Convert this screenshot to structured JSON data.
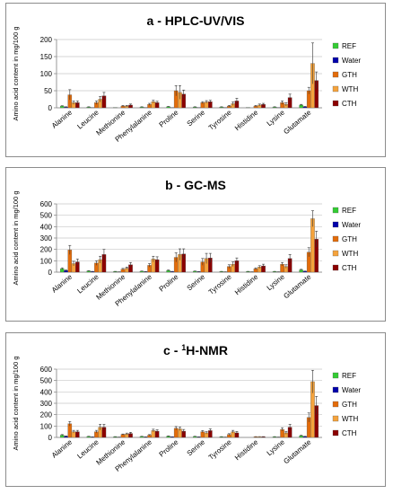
{
  "legend": [
    "REF",
    "Water",
    "GTH",
    "WTH",
    "CTH"
  ],
  "series_colors": [
    "#33cc33",
    "#0000aa",
    "#e36c0a",
    "#f5a33c",
    "#8b0000"
  ],
  "categories": [
    "Alanine",
    "Leucine",
    "Methionine",
    "Phenylalanine",
    "Proline",
    "Serine",
    "Tyrosine",
    "Histidine",
    "Lysine",
    "Glutamate"
  ],
  "chart_data": [
    {
      "type": "bar",
      "title": "a - HPLC-UV/VIS",
      "ylabel": "Amino acid content in mg/100 g",
      "ylim": [
        0,
        200
      ],
      "yticks": [
        "0",
        "50",
        "100",
        "150",
        "200"
      ],
      "categories": [
        "Alanine",
        "Leucine",
        "Methionine",
        "Phenylalanine",
        "Proline",
        "Serine",
        "Tyrosine",
        "Histidine",
        "Lysine",
        "Glutamate"
      ],
      "series": [
        {
          "name": "REF",
          "values": [
            5,
            2,
            1,
            2,
            3,
            2,
            2,
            1,
            2,
            8
          ],
          "errors": [
            1,
            1,
            0,
            1,
            1,
            1,
            1,
            0,
            1,
            2
          ]
        },
        {
          "name": "Water",
          "values": [
            2,
            1,
            0,
            1,
            1,
            1,
            1,
            0,
            1,
            3
          ],
          "errors": [
            1,
            0,
            0,
            0,
            0,
            0,
            0,
            0,
            0,
            1
          ]
        },
        {
          "name": "GTH",
          "values": [
            38,
            15,
            5,
            10,
            50,
            15,
            5,
            5,
            15,
            50
          ],
          "errors": [
            15,
            5,
            2,
            3,
            15,
            3,
            2,
            2,
            5,
            10
          ]
        },
        {
          "name": "WTH",
          "values": [
            15,
            25,
            5,
            18,
            45,
            17,
            12,
            8,
            10,
            130
          ],
          "errors": [
            5,
            8,
            2,
            4,
            20,
            4,
            5,
            3,
            5,
            60
          ]
        },
        {
          "name": "CTH",
          "values": [
            15,
            35,
            8,
            15,
            40,
            18,
            20,
            10,
            30,
            80
          ],
          "errors": [
            5,
            10,
            3,
            4,
            12,
            4,
            8,
            3,
            10,
            25
          ]
        }
      ]
    },
    {
      "type": "bar",
      "title": "b - GC-MS",
      "ylabel": "Amino acid content in mg/100 g",
      "ylim": [
        0,
        600
      ],
      "yticks": [
        "0",
        "100",
        "200",
        "300",
        "400",
        "500",
        "600"
      ],
      "categories": [
        "Alanine",
        "Leucine",
        "Methionine",
        "Phenylalanine",
        "Proline",
        "Serine",
        "Tyrosine",
        "Histidine",
        "Lysine",
        "Glutamate"
      ],
      "series": [
        {
          "name": "REF",
          "values": [
            30,
            10,
            5,
            8,
            15,
            8,
            5,
            5,
            5,
            20
          ],
          "errors": [
            8,
            3,
            2,
            2,
            4,
            2,
            2,
            2,
            2,
            5
          ]
        },
        {
          "name": "Water",
          "values": [
            15,
            5,
            2,
            4,
            5,
            4,
            2,
            2,
            2,
            8
          ],
          "errors": [
            4,
            2,
            1,
            1,
            2,
            1,
            1,
            1,
            1,
            2
          ]
        },
        {
          "name": "GTH",
          "values": [
            195,
            80,
            25,
            60,
            130,
            90,
            50,
            30,
            70,
            175
          ],
          "errors": [
            40,
            20,
            8,
            15,
            40,
            30,
            15,
            8,
            15,
            40
          ]
        },
        {
          "name": "WTH",
          "values": [
            75,
            110,
            35,
            115,
            155,
            120,
            70,
            45,
            50,
            470
          ],
          "errors": [
            20,
            30,
            10,
            25,
            50,
            45,
            20,
            12,
            15,
            70
          ]
        },
        {
          "name": "CTH",
          "values": [
            90,
            155,
            65,
            110,
            160,
            125,
            100,
            55,
            120,
            290
          ],
          "errors": [
            25,
            45,
            20,
            25,
            45,
            40,
            25,
            15,
            35,
            70
          ]
        }
      ]
    },
    {
      "type": "bar",
      "title": "c - ",
      "title_sup": "1",
      "title_rest": "H-NMR",
      "ylabel": "Amino acid content in mg/100 g",
      "ylim": [
        0,
        600
      ],
      "yticks": [
        "0",
        "100",
        "200",
        "300",
        "400",
        "500",
        "600"
      ],
      "categories": [
        "Alanine",
        "Leucine",
        "Methionine",
        "Phenylalanine",
        "Proline",
        "Serine",
        "Tyrosine",
        "Histidine",
        "Lysine",
        "Glutamate"
      ],
      "series": [
        {
          "name": "REF",
          "values": [
            20,
            8,
            5,
            8,
            10,
            8,
            5,
            0,
            5,
            15
          ],
          "errors": [
            5,
            2,
            2,
            2,
            3,
            2,
            2,
            0,
            2,
            4
          ]
        },
        {
          "name": "Water",
          "values": [
            10,
            4,
            2,
            4,
            5,
            4,
            2,
            0,
            2,
            8
          ],
          "errors": [
            3,
            1,
            1,
            1,
            1,
            1,
            1,
            0,
            1,
            2
          ]
        },
        {
          "name": "GTH",
          "values": [
            120,
            50,
            25,
            20,
            80,
            50,
            25,
            5,
            70,
            175
          ],
          "errors": [
            20,
            12,
            5,
            5,
            15,
            10,
            8,
            2,
            15,
            40
          ]
        },
        {
          "name": "WTH",
          "values": [
            50,
            90,
            30,
            60,
            75,
            40,
            50,
            5,
            40,
            490
          ],
          "errors": [
            12,
            25,
            8,
            12,
            15,
            10,
            12,
            2,
            12,
            100
          ]
        },
        {
          "name": "CTH",
          "values": [
            50,
            90,
            35,
            55,
            55,
            60,
            40,
            5,
            90,
            280
          ],
          "errors": [
            12,
            25,
            10,
            12,
            15,
            15,
            12,
            2,
            25,
            80
          ]
        }
      ]
    }
  ]
}
